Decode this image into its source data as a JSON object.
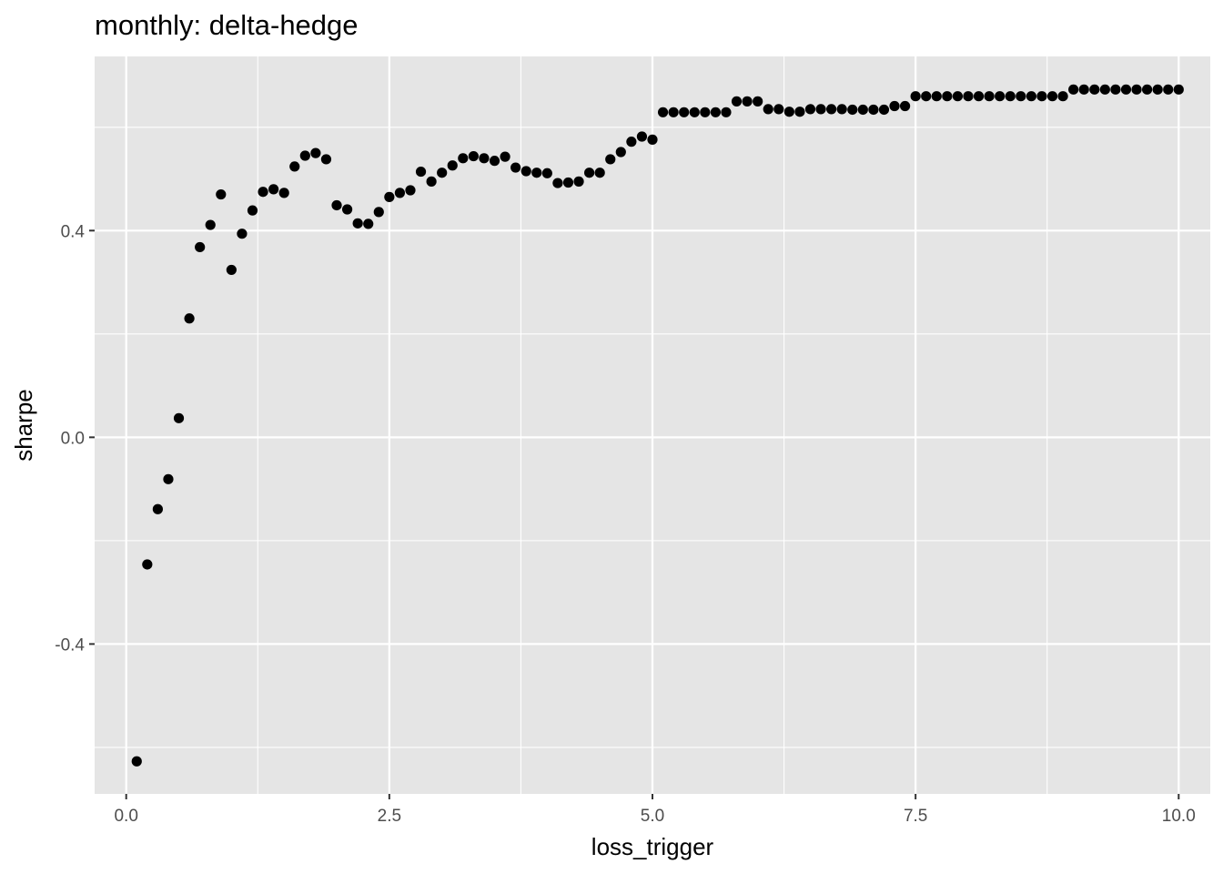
{
  "chart_data": {
    "type": "scatter",
    "title": "monthly: delta-hedge",
    "xlabel": "loss_trigger",
    "ylabel": "sharpe",
    "xlim": [
      -0.3,
      10.3
    ],
    "ylim": [
      -0.69,
      0.737
    ],
    "x_ticks": [
      0.0,
      2.5,
      5.0,
      7.5,
      10.0
    ],
    "x_tick_labels": [
      "0.0",
      "2.5",
      "5.0",
      "7.5",
      "10.0"
    ],
    "y_ticks": [
      -0.4,
      0.0,
      0.4
    ],
    "y_tick_labels": [
      "-0.4",
      "0.0",
      "0.4"
    ],
    "grid": true,
    "colors": {
      "panel": "#e5e5e5",
      "grid": "#ffffff",
      "point": "#000000",
      "tick": "#4d4d4d"
    },
    "series": [
      {
        "x": [
          0.1,
          0.2,
          0.3,
          0.4,
          0.5,
          0.6,
          0.7,
          0.8,
          0.9,
          1.0,
          1.1,
          1.2,
          1.3,
          1.4,
          1.5,
          1.6,
          1.7,
          1.8,
          1.9,
          2.0,
          2.1,
          2.2,
          2.3,
          2.4,
          2.5,
          2.6,
          2.7,
          2.8,
          2.9,
          3.0,
          3.1,
          3.2,
          3.3,
          3.4,
          3.5,
          3.6,
          3.7,
          3.8,
          3.9,
          4.0,
          4.1,
          4.2,
          4.3,
          4.4,
          4.5,
          4.6,
          4.7,
          4.8,
          4.9,
          5.0,
          5.1,
          5.2,
          5.3,
          5.4,
          5.5,
          5.6,
          5.7,
          5.8,
          5.9,
          6.0,
          6.1,
          6.2,
          6.3,
          6.4,
          6.5,
          6.6,
          6.7,
          6.8,
          6.9,
          7.0,
          7.1,
          7.2,
          7.3,
          7.4,
          7.5,
          7.6,
          7.7,
          7.8,
          7.9,
          8.0,
          8.1,
          8.2,
          8.3,
          8.4,
          8.5,
          8.6,
          8.7,
          8.8,
          8.9,
          9.0,
          9.1,
          9.2,
          9.3,
          9.4,
          9.5,
          9.6,
          9.7,
          9.8,
          9.9,
          10.0
        ],
        "y": [
          -0.627,
          -0.246,
          -0.139,
          -0.081,
          0.037,
          0.23,
          0.368,
          0.411,
          0.47,
          0.324,
          0.394,
          0.439,
          0.475,
          0.48,
          0.473,
          0.524,
          0.545,
          0.55,
          0.538,
          0.449,
          0.441,
          0.414,
          0.413,
          0.436,
          0.465,
          0.473,
          0.478,
          0.514,
          0.495,
          0.512,
          0.526,
          0.54,
          0.544,
          0.54,
          0.535,
          0.543,
          0.522,
          0.515,
          0.512,
          0.511,
          0.492,
          0.493,
          0.495,
          0.512,
          0.512,
          0.538,
          0.552,
          0.572,
          0.582,
          0.576,
          0.629,
          0.629,
          0.629,
          0.629,
          0.629,
          0.629,
          0.629,
          0.65,
          0.65,
          0.65,
          0.635,
          0.635,
          0.63,
          0.63,
          0.635,
          0.635,
          0.635,
          0.635,
          0.634,
          0.634,
          0.634,
          0.634,
          0.641,
          0.641,
          0.66,
          0.66,
          0.66,
          0.66,
          0.66,
          0.66,
          0.66,
          0.66,
          0.66,
          0.66,
          0.66,
          0.66,
          0.66,
          0.66,
          0.66,
          0.673,
          0.673,
          0.673,
          0.673,
          0.673,
          0.673,
          0.673,
          0.673,
          0.673,
          0.673,
          0.673
        ]
      }
    ]
  }
}
